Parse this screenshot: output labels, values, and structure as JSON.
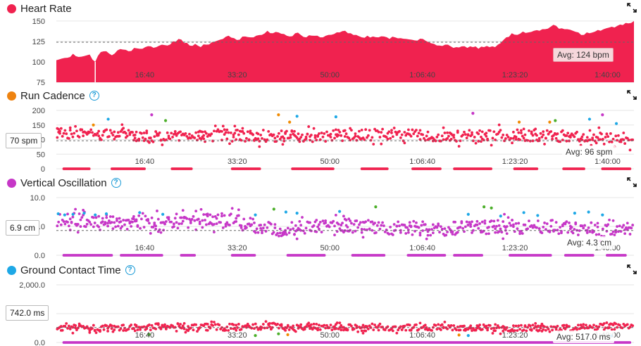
{
  "x_tick_labels": [
    "16:40",
    "33:20",
    "50:00",
    "1:06:40",
    "1:23:20",
    "1:40:00"
  ],
  "colors": {
    "heart_rate": "#f0224f",
    "cadence_dot": "#ee8310",
    "oscillation_dot": "#c637c7",
    "gct_dot": "#1ea8e6",
    "green": "#4caf2a",
    "orange": "#f08a00",
    "blue": "#1ea8e6",
    "help": "#1a9ad6"
  },
  "icons": {
    "expand": "expand-icon",
    "help": "help-icon"
  },
  "panels": {
    "heart_rate": {
      "title": "Heart Rate",
      "avg_label": "Avg: 124 bpm"
    },
    "cadence": {
      "title": "Run Cadence",
      "avg_label": "Avg: 96 spm",
      "cursor_label": "70 spm"
    },
    "oscillation": {
      "title": "Vertical Oscillation",
      "avg_label": "Avg: 4.3 cm",
      "cursor_label": "6.9 cm"
    },
    "gct": {
      "title": "Ground Contact Time",
      "avg_label": "Avg: 517.0 ms",
      "cursor_label": "742.0 ms"
    }
  },
  "chart_data": [
    {
      "type": "area",
      "title": "Heart Rate",
      "x_unit": "elapsed seconds",
      "x_range": [
        0,
        6240
      ],
      "ylim": [
        75,
        155
      ],
      "y_ticks": [
        "150",
        "125",
        "100",
        "75"
      ],
      "y_tick_values": [
        150,
        125,
        100,
        75
      ],
      "x_ticks": [
        1000,
        2000,
        3000,
        4000,
        5000,
        6000
      ],
      "average": 124,
      "x": [
        0,
        60,
        120,
        180,
        240,
        300,
        360,
        420,
        480,
        540,
        600,
        660,
        720,
        780,
        840,
        900,
        960,
        1020,
        1080,
        1140,
        1200,
        1260,
        1320,
        1380,
        1440,
        1500,
        1560,
        1620,
        1680,
        1740,
        1800,
        1860,
        1920,
        1980,
        2040,
        2100,
        2160,
        2220,
        2280,
        2340,
        2400,
        2460,
        2520,
        2580,
        2640,
        2700,
        2760,
        2820,
        2880,
        2940,
        3000,
        3060,
        3120,
        3180,
        3240,
        3300,
        3360,
        3420,
        3480,
        3540,
        3600,
        3660,
        3720,
        3780,
        3840,
        3900,
        3960,
        4020,
        4080,
        4140,
        4200,
        4260,
        4320,
        4380,
        4440,
        4500,
        4560,
        4620,
        4680,
        4740,
        4800,
        4860,
        4920,
        4980,
        5040,
        5100,
        5160,
        5220,
        5280,
        5340,
        5400,
        5460,
        5520,
        5580,
        5640,
        5700,
        5760,
        5820,
        5880,
        5940,
        6000,
        6060,
        6120,
        6180,
        6240
      ],
      "values": [
        102,
        104,
        105,
        110,
        106,
        107,
        109,
        100,
        112,
        113,
        108,
        114,
        115,
        113,
        117,
        116,
        118,
        119,
        118,
        121,
        120,
        125,
        128,
        123,
        120,
        122,
        118,
        121,
        124,
        126,
        128,
        132,
        129,
        127,
        131,
        130,
        132,
        133,
        138,
        135,
        136,
        134,
        131,
        135,
        133,
        130,
        132,
        132,
        130,
        133,
        134,
        136,
        138,
        135,
        133,
        130,
        132,
        131,
        130,
        131,
        128,
        130,
        129,
        128,
        127,
        126,
        128,
        124,
        122,
        120,
        121,
        119,
        118,
        119,
        117,
        118,
        116,
        118,
        118,
        118,
        123,
        130,
        135,
        133,
        137,
        136,
        138,
        138,
        140,
        143,
        144,
        141,
        140,
        138,
        136,
        133,
        135,
        137,
        138,
        141,
        143,
        144,
        145,
        147,
        150
      ]
    },
    {
      "type": "scatter",
      "title": "Run Cadence",
      "x_unit": "elapsed seconds",
      "x_range": [
        0,
        6240
      ],
      "ylim": [
        0,
        200
      ],
      "y_ticks": [
        "200",
        "150",
        "100",
        "50",
        "0"
      ],
      "y_tick_values": [
        200,
        150,
        100,
        50,
        0
      ],
      "x_ticks": [
        1000,
        2000,
        3000,
        4000,
        5000,
        6000
      ],
      "average": 96,
      "trend": [
        [
          0,
          125
        ],
        [
          600,
          118
        ],
        [
          1200,
          108
        ],
        [
          1800,
          115
        ],
        [
          2400,
          110
        ],
        [
          3000,
          114
        ],
        [
          3600,
          117
        ],
        [
          4200,
          110
        ],
        [
          4800,
          116
        ],
        [
          5400,
          112
        ],
        [
          6000,
          108
        ],
        [
          6240,
          78
        ]
      ],
      "spread": 20,
      "zero_runs": [
        [
          80,
          360
        ],
        [
          600,
          960
        ],
        [
          1250,
          1460
        ],
        [
          1900,
          2200
        ],
        [
          2550,
          3000
        ],
        [
          3300,
          3580
        ],
        [
          3850,
          4150
        ],
        [
          4300,
          4700
        ],
        [
          4950,
          5200
        ],
        [
          5480,
          5700
        ],
        [
          5900,
          6200
        ]
      ],
      "outliers": [
        {
          "x": 400,
          "y": 150,
          "c": "orange"
        },
        {
          "x": 560,
          "y": 170,
          "c": "blue"
        },
        {
          "x": 1030,
          "y": 185,
          "c": "magenta"
        },
        {
          "x": 1180,
          "y": 165,
          "c": "green"
        },
        {
          "x": 2400,
          "y": 185,
          "c": "orange"
        },
        {
          "x": 2520,
          "y": 160,
          "c": "orange"
        },
        {
          "x": 2600,
          "y": 180,
          "c": "blue"
        },
        {
          "x": 3020,
          "y": 178,
          "c": "blue"
        },
        {
          "x": 4500,
          "y": 190,
          "c": "magenta"
        },
        {
          "x": 5000,
          "y": 160,
          "c": "orange"
        },
        {
          "x": 5330,
          "y": 160,
          "c": "orange"
        },
        {
          "x": 5390,
          "y": 165,
          "c": "green"
        },
        {
          "x": 5760,
          "y": 170,
          "c": "blue"
        },
        {
          "x": 5900,
          "y": 185,
          "c": "magenta"
        },
        {
          "x": 6050,
          "y": 155,
          "c": "blue"
        }
      ]
    },
    {
      "type": "scatter",
      "title": "Vertical Oscillation",
      "x_unit": "elapsed seconds",
      "x_range": [
        0,
        6240
      ],
      "ylim": [
        0,
        10
      ],
      "y_ticks": [
        "10.0",
        "5.0",
        "0.0"
      ],
      "y_tick_values": [
        10,
        5,
        0
      ],
      "x_ticks": [
        1000,
        2000,
        3000,
        4000,
        5000,
        6000
      ],
      "average": 4.3,
      "trend": [
        [
          0,
          6.2
        ],
        [
          600,
          5.8
        ],
        [
          1200,
          5.5
        ],
        [
          1800,
          6.3
        ],
        [
          2400,
          4.5
        ],
        [
          3000,
          5.3
        ],
        [
          3600,
          4.7
        ],
        [
          4200,
          4.6
        ],
        [
          4800,
          5.0
        ],
        [
          5400,
          4.9
        ],
        [
          6000,
          4.3
        ],
        [
          6240,
          4.5
        ]
      ],
      "spread": 1.2,
      "zero_runs": [
        [
          80,
          600
        ],
        [
          700,
          1150
        ],
        [
          1350,
          1500
        ],
        [
          1900,
          2150
        ],
        [
          2500,
          2900
        ],
        [
          3200,
          3550
        ],
        [
          3800,
          4200
        ],
        [
          4300,
          4600
        ],
        [
          4900,
          5350
        ],
        [
          5500,
          5800
        ],
        [
          5950,
          6150
        ]
      ],
      "outliers": [
        {
          "x": 20,
          "y": 7.2,
          "c": "blue"
        },
        {
          "x": 90,
          "y": 7.0,
          "c": "blue"
        },
        {
          "x": 180,
          "y": 7.1,
          "c": "blue"
        },
        {
          "x": 300,
          "y": 7.3,
          "c": "blue"
        },
        {
          "x": 420,
          "y": 7.0,
          "c": "blue"
        },
        {
          "x": 540,
          "y": 7.2,
          "c": "blue"
        },
        {
          "x": 900,
          "y": 7.4,
          "c": "blue"
        },
        {
          "x": 1150,
          "y": 7.1,
          "c": "blue"
        },
        {
          "x": 2150,
          "y": 7.0,
          "c": "blue"
        },
        {
          "x": 2350,
          "y": 8.0,
          "c": "green"
        },
        {
          "x": 2480,
          "y": 7.5,
          "c": "blue"
        },
        {
          "x": 2600,
          "y": 7.3,
          "c": "blue"
        },
        {
          "x": 3060,
          "y": 7.6,
          "c": "blue"
        },
        {
          "x": 3450,
          "y": 8.4,
          "c": "green"
        },
        {
          "x": 4450,
          "y": 7.1,
          "c": "blue"
        },
        {
          "x": 4620,
          "y": 8.4,
          "c": "green"
        },
        {
          "x": 4700,
          "y": 8.2,
          "c": "green"
        },
        {
          "x": 4800,
          "y": 6.8,
          "c": "blue"
        },
        {
          "x": 5050,
          "y": 7.4,
          "c": "blue"
        },
        {
          "x": 5200,
          "y": 6.9,
          "c": "blue"
        },
        {
          "x": 5600,
          "y": 7.3,
          "c": "blue"
        },
        {
          "x": 5750,
          "y": 7.5,
          "c": "blue"
        },
        {
          "x": 5900,
          "y": 7.0,
          "c": "blue"
        }
      ]
    },
    {
      "type": "scatter",
      "title": "Ground Contact Time",
      "x_unit": "elapsed seconds",
      "x_range": [
        0,
        6240
      ],
      "ylim": [
        0,
        2000
      ],
      "y_ticks": [
        "2,000.0",
        "1,000.0",
        "0.0"
      ],
      "y_tick_values": [
        2000,
        1000,
        0
      ],
      "x_ticks": [
        1000,
        2000,
        3000,
        4000,
        5000,
        6000
      ],
      "average": 517,
      "trend": [
        [
          0,
          520
        ],
        [
          600,
          480
        ],
        [
          1200,
          560
        ],
        [
          1800,
          520
        ],
        [
          2400,
          560
        ],
        [
          3000,
          520
        ],
        [
          3600,
          500
        ],
        [
          4200,
          530
        ],
        [
          4800,
          500
        ],
        [
          5400,
          480
        ],
        [
          6000,
          560
        ],
        [
          6240,
          600
        ]
      ],
      "spread": 110,
      "zero_runs": [
        [
          80,
          6200
        ]
      ],
      "outliers": [
        {
          "x": 1000,
          "y": 280,
          "c": "green"
        },
        {
          "x": 2150,
          "y": 240,
          "c": "green"
        },
        {
          "x": 2400,
          "y": 300,
          "c": "green"
        },
        {
          "x": 2500,
          "y": 270,
          "c": "orange"
        },
        {
          "x": 4350,
          "y": 260,
          "c": "orange"
        },
        {
          "x": 4450,
          "y": 240,
          "c": "blue"
        },
        {
          "x": 6000,
          "y": 230,
          "c": "blue"
        }
      ]
    }
  ]
}
